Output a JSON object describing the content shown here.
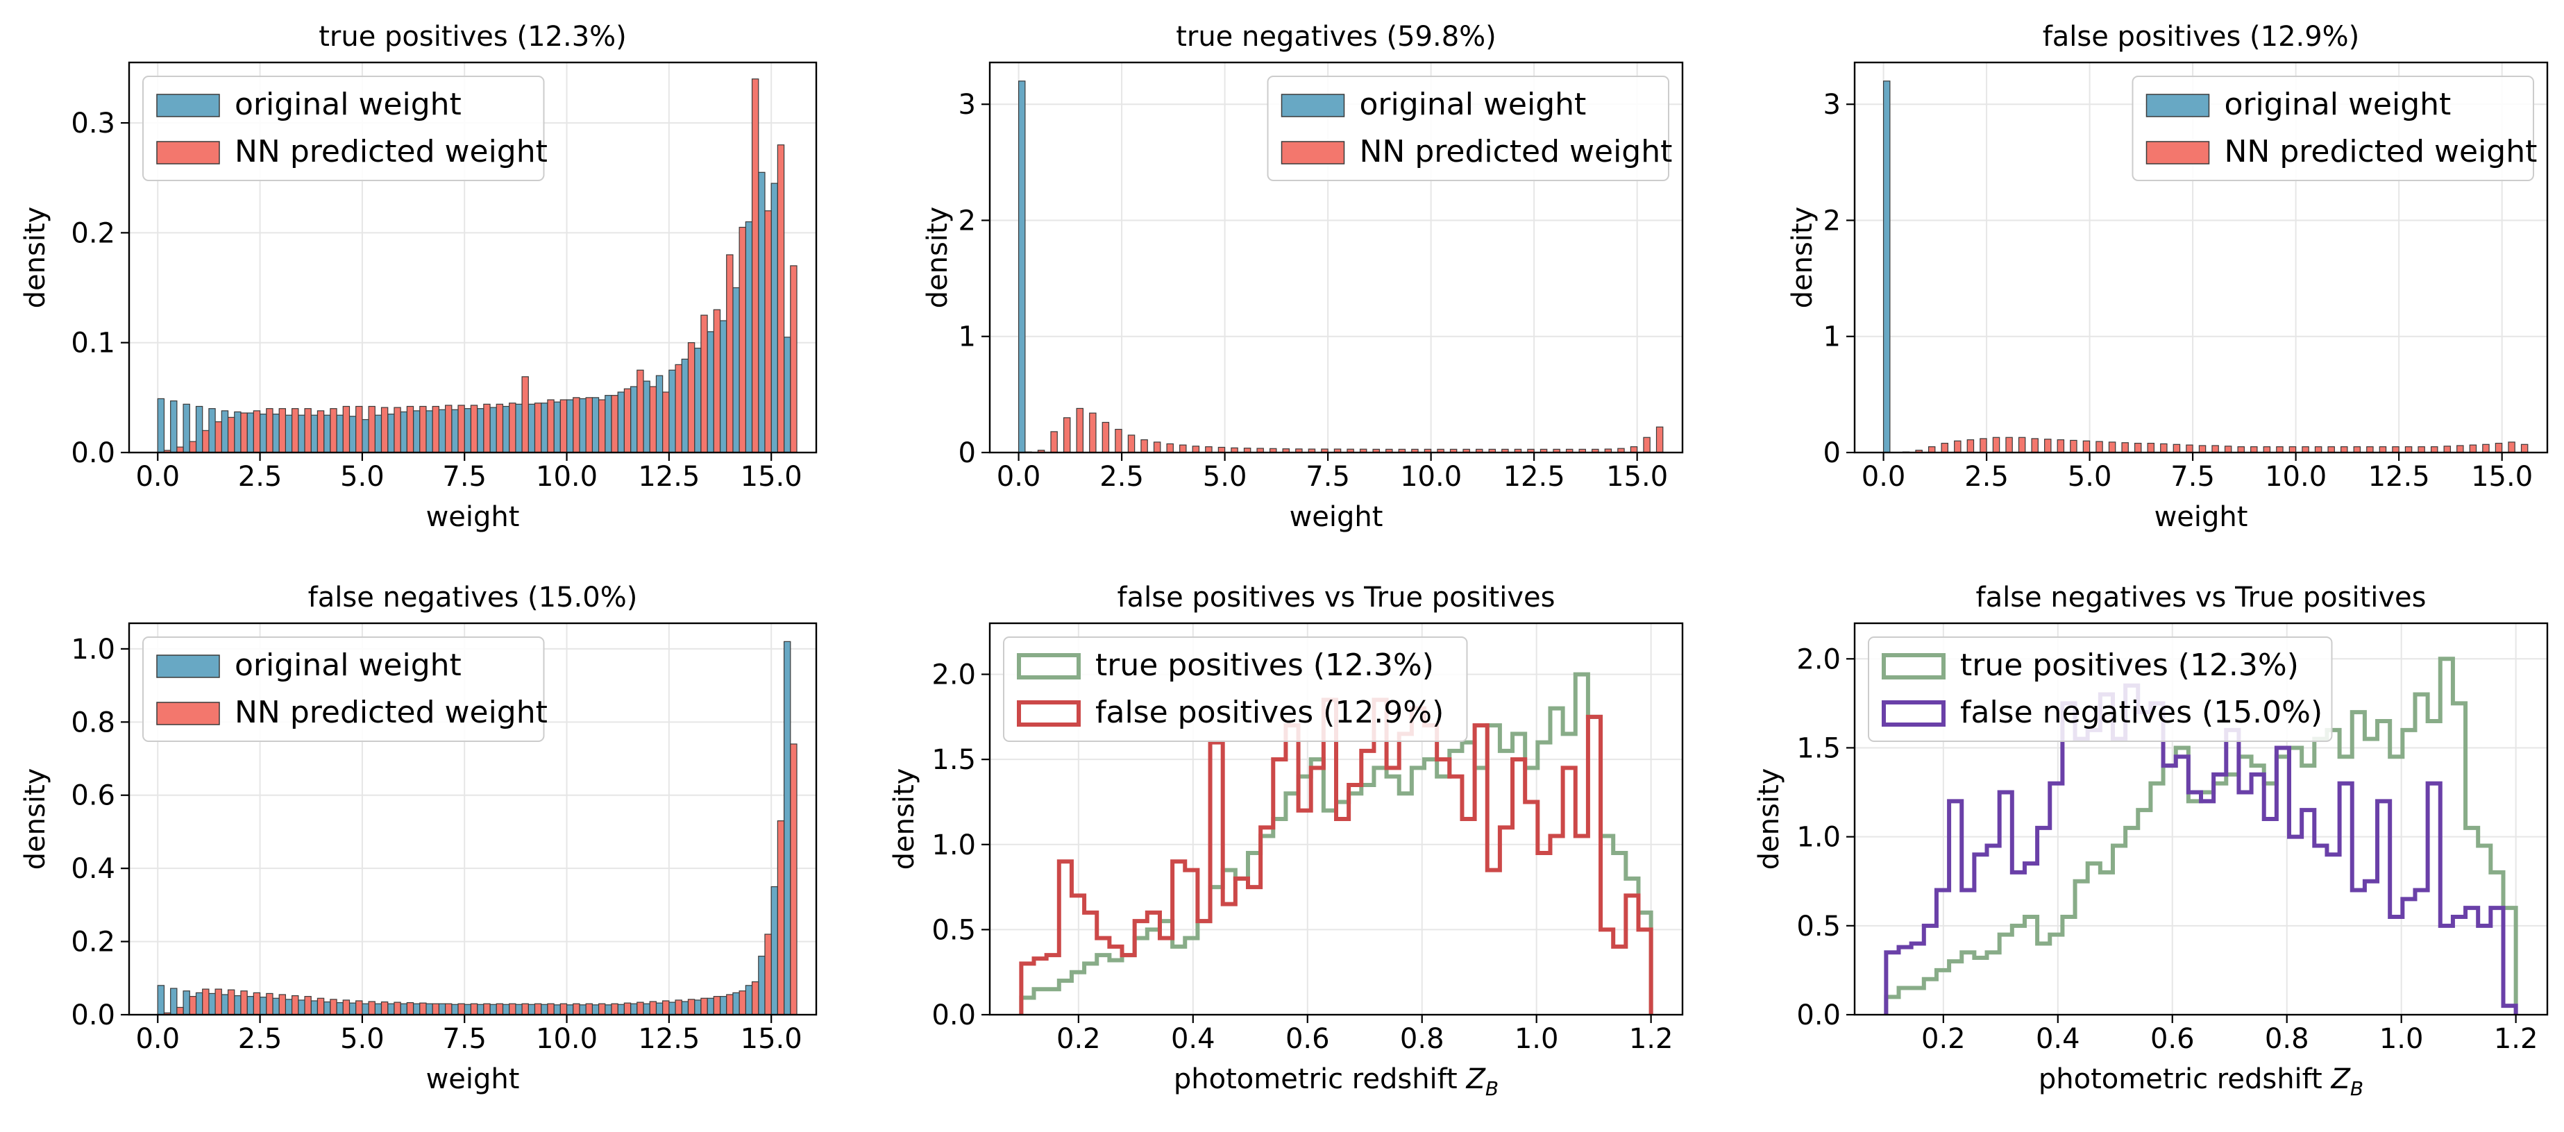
{
  "figure": {
    "background": "#ffffff"
  },
  "colors": {
    "original": "#68a8c4",
    "predicted": "#f3776d",
    "tp_step": "#88ac88",
    "fp_step": "#cc4848",
    "fn_step": "#6a40a8",
    "grid": "#e6e6e6"
  },
  "chart_data": [
    {
      "id": "tp",
      "type": "bar",
      "title": "true positives (12.3%)",
      "xlabel": "weight",
      "ylabel": "density",
      "xlim": [
        -0.7,
        16.1
      ],
      "ylim": [
        0,
        0.355
      ],
      "xticks": [
        0.0,
        2.5,
        5.0,
        7.5,
        10.0,
        12.5,
        15.0
      ],
      "xtick_labels": [
        "0.0",
        "2.5",
        "5.0",
        "7.5",
        "10.0",
        "12.5",
        "15.0"
      ],
      "yticks": [
        0.0,
        0.1,
        0.2,
        0.3
      ],
      "ytick_labels": [
        "0.0",
        "0.1",
        "0.2",
        "0.3"
      ],
      "legend": {
        "placement": "upper-left",
        "items": [
          "original weight",
          "NN predicted weight"
        ]
      },
      "bin_start": 0,
      "bin_width": 0.3125,
      "series": [
        {
          "name": "original weight",
          "values": [
            0.049,
            0.047,
            0.044,
            0.042,
            0.04,
            0.038,
            0.037,
            0.036,
            0.035,
            0.035,
            0.034,
            0.034,
            0.034,
            0.034,
            0.034,
            0.033,
            0.03,
            0.034,
            0.035,
            0.037,
            0.038,
            0.038,
            0.039,
            0.039,
            0.04,
            0.04,
            0.041,
            0.042,
            0.044,
            0.044,
            0.045,
            0.046,
            0.048,
            0.049,
            0.05,
            0.052,
            0.055,
            0.06,
            0.065,
            0.07,
            0.075,
            0.085,
            0.095,
            0.11,
            0.12,
            0.15,
            0.21,
            0.255,
            0.245,
            0.105
          ]
        },
        {
          "name": "NN predicted weight",
          "values": [
            0.002,
            0.005,
            0.01,
            0.02,
            0.028,
            0.032,
            0.036,
            0.038,
            0.04,
            0.04,
            0.04,
            0.04,
            0.038,
            0.04,
            0.042,
            0.042,
            0.042,
            0.041,
            0.041,
            0.042,
            0.042,
            0.042,
            0.043,
            0.043,
            0.043,
            0.044,
            0.044,
            0.045,
            0.069,
            0.045,
            0.048,
            0.048,
            0.05,
            0.05,
            0.048,
            0.052,
            0.058,
            0.075,
            0.06,
            0.055,
            0.08,
            0.1,
            0.125,
            0.13,
            0.18,
            0.205,
            0.34,
            0.22,
            0.28,
            0.17
          ]
        }
      ]
    },
    {
      "id": "tn",
      "type": "bar",
      "title": "true negatives (59.8%)",
      "xlabel": "weight",
      "ylabel": "density",
      "xlim": [
        -0.7,
        16.1
      ],
      "ylim": [
        0,
        3.36
      ],
      "xticks": [
        0.0,
        2.5,
        5.0,
        7.5,
        10.0,
        12.5,
        15.0
      ],
      "xtick_labels": [
        "0.0",
        "2.5",
        "5.0",
        "7.5",
        "10.0",
        "12.5",
        "15.0"
      ],
      "yticks": [
        0,
        1,
        2,
        3
      ],
      "ytick_labels": [
        "0",
        "1",
        "2",
        "3"
      ],
      "legend": {
        "placement": "upper-right",
        "items": [
          "original weight",
          "NN predicted weight"
        ]
      },
      "bin_start": 0,
      "bin_width": 0.3125,
      "series": [
        {
          "name": "original weight",
          "values": [
            3.2,
            0,
            0,
            0,
            0,
            0,
            0,
            0,
            0,
            0,
            0,
            0,
            0,
            0,
            0,
            0,
            0,
            0,
            0,
            0,
            0,
            0,
            0,
            0,
            0,
            0,
            0,
            0,
            0,
            0,
            0,
            0,
            0,
            0,
            0,
            0,
            0,
            0,
            0,
            0,
            0,
            0,
            0,
            0,
            0,
            0,
            0,
            0,
            0,
            0
          ]
        },
        {
          "name": "NN predicted weight",
          "values": [
            0.005,
            0.02,
            0.18,
            0.3,
            0.38,
            0.34,
            0.26,
            0.2,
            0.15,
            0.11,
            0.09,
            0.075,
            0.065,
            0.055,
            0.05,
            0.045,
            0.04,
            0.038,
            0.036,
            0.034,
            0.032,
            0.031,
            0.03,
            0.03,
            0.03,
            0.029,
            0.029,
            0.028,
            0.028,
            0.028,
            0.028,
            0.028,
            0.028,
            0.028,
            0.028,
            0.028,
            0.028,
            0.028,
            0.028,
            0.028,
            0.028,
            0.028,
            0.028,
            0.028,
            0.028,
            0.03,
            0.035,
            0.05,
            0.13,
            0.22
          ]
        }
      ]
    },
    {
      "id": "fp",
      "type": "bar",
      "title": "false positives (12.9%)",
      "xlabel": "weight",
      "ylabel": "density",
      "xlim": [
        -0.7,
        16.1
      ],
      "ylim": [
        0,
        3.36
      ],
      "xticks": [
        0.0,
        2.5,
        5.0,
        7.5,
        10.0,
        12.5,
        15.0
      ],
      "xtick_labels": [
        "0.0",
        "2.5",
        "5.0",
        "7.5",
        "10.0",
        "12.5",
        "15.0"
      ],
      "yticks": [
        0,
        1,
        2,
        3
      ],
      "ytick_labels": [
        "0",
        "1",
        "2",
        "3"
      ],
      "legend": {
        "placement": "upper-right",
        "items": [
          "original weight",
          "NN predicted weight"
        ]
      },
      "bin_start": 0,
      "bin_width": 0.3125,
      "series": [
        {
          "name": "original weight",
          "values": [
            3.2,
            0,
            0,
            0,
            0,
            0,
            0,
            0,
            0,
            0,
            0,
            0,
            0,
            0,
            0,
            0,
            0,
            0,
            0,
            0,
            0,
            0,
            0,
            0,
            0,
            0,
            0,
            0,
            0,
            0,
            0,
            0,
            0,
            0,
            0,
            0,
            0,
            0,
            0,
            0,
            0,
            0,
            0,
            0,
            0,
            0,
            0,
            0,
            0,
            0
          ]
        },
        {
          "name": "NN predicted weight",
          "values": [
            0.002,
            0.005,
            0.02,
            0.05,
            0.08,
            0.1,
            0.11,
            0.12,
            0.13,
            0.13,
            0.13,
            0.12,
            0.115,
            0.11,
            0.105,
            0.1,
            0.095,
            0.09,
            0.085,
            0.08,
            0.08,
            0.075,
            0.07,
            0.065,
            0.06,
            0.06,
            0.055,
            0.05,
            0.05,
            0.05,
            0.05,
            0.05,
            0.05,
            0.05,
            0.05,
            0.05,
            0.05,
            0.05,
            0.05,
            0.05,
            0.05,
            0.05,
            0.05,
            0.055,
            0.06,
            0.065,
            0.07,
            0.08,
            0.09,
            0.07
          ]
        }
      ]
    },
    {
      "id": "fn",
      "type": "bar",
      "title": "false negatives (15.0%)",
      "xlabel": "weight",
      "ylabel": "density",
      "xlim": [
        -0.7,
        16.1
      ],
      "ylim": [
        0,
        1.07
      ],
      "xticks": [
        0.0,
        2.5,
        5.0,
        7.5,
        10.0,
        12.5,
        15.0
      ],
      "xtick_labels": [
        "0.0",
        "2.5",
        "5.0",
        "7.5",
        "10.0",
        "12.5",
        "15.0"
      ],
      "yticks": [
        0.0,
        0.2,
        0.4,
        0.6,
        0.8,
        1.0
      ],
      "ytick_labels": [
        "0.0",
        "0.2",
        "0.4",
        "0.6",
        "0.8",
        "1.0"
      ],
      "legend": {
        "placement": "upper-left",
        "items": [
          "original weight",
          "NN predicted weight"
        ]
      },
      "bin_start": 0,
      "bin_width": 0.3125,
      "series": [
        {
          "name": "original weight",
          "values": [
            0.08,
            0.072,
            0.065,
            0.06,
            0.058,
            0.055,
            0.052,
            0.05,
            0.048,
            0.045,
            0.042,
            0.04,
            0.038,
            0.035,
            0.033,
            0.032,
            0.03,
            0.03,
            0.03,
            0.03,
            0.03,
            0.03,
            0.03,
            0.028,
            0.028,
            0.028,
            0.028,
            0.028,
            0.028,
            0.028,
            0.028,
            0.027,
            0.027,
            0.027,
            0.027,
            0.027,
            0.028,
            0.03,
            0.03,
            0.032,
            0.034,
            0.036,
            0.04,
            0.045,
            0.05,
            0.06,
            0.08,
            0.16,
            0.35,
            1.02
          ]
        },
        {
          "name": "NN predicted weight",
          "values": [
            0.005,
            0.02,
            0.05,
            0.07,
            0.07,
            0.068,
            0.065,
            0.06,
            0.058,
            0.055,
            0.052,
            0.05,
            0.045,
            0.042,
            0.04,
            0.038,
            0.036,
            0.035,
            0.034,
            0.033,
            0.032,
            0.03,
            0.03,
            0.03,
            0.03,
            0.03,
            0.03,
            0.03,
            0.03,
            0.03,
            0.03,
            0.03,
            0.03,
            0.03,
            0.03,
            0.03,
            0.032,
            0.034,
            0.036,
            0.038,
            0.04,
            0.042,
            0.045,
            0.05,
            0.055,
            0.065,
            0.09,
            0.22,
            0.53,
            0.74
          ]
        }
      ]
    },
    {
      "id": "fp_vs_tp",
      "type": "step",
      "title": "false positives vs True positives",
      "xlabel": "photometric redshift Z_B",
      "ylabel": "density",
      "xlim": [
        0.045,
        1.255
      ],
      "ylim": [
        0,
        2.3
      ],
      "xticks": [
        0.2,
        0.4,
        0.6,
        0.8,
        1.0,
        1.2
      ],
      "xtick_labels": [
        "0.2",
        "0.4",
        "0.6",
        "0.8",
        "1.0",
        "1.2"
      ],
      "yticks": [
        0.0,
        0.5,
        1.0,
        1.5,
        2.0
      ],
      "ytick_labels": [
        "0.0",
        "0.5",
        "1.0",
        "1.5",
        "2.0"
      ],
      "legend": {
        "placement": "upper-left",
        "items": [
          "true positives (12.3%)",
          "false positives (12.9%)"
        ]
      },
      "bin_start": 0.1,
      "bin_width": 0.022,
      "series": [
        {
          "name": "true positives (12.3%)",
          "color_key": "tp_step",
          "values": [
            0.1,
            0.15,
            0.15,
            0.2,
            0.25,
            0.3,
            0.35,
            0.32,
            0.35,
            0.45,
            0.5,
            0.55,
            0.4,
            0.45,
            0.55,
            0.75,
            0.85,
            0.8,
            0.95,
            1.05,
            1.15,
            1.3,
            1.4,
            1.5,
            1.2,
            1.25,
            1.3,
            1.35,
            1.45,
            1.4,
            1.3,
            1.45,
            1.5,
            1.4,
            1.55,
            1.6,
            1.45,
            1.7,
            1.55,
            1.65,
            1.45,
            1.6,
            1.8,
            1.65,
            2.0,
            1.75,
            1.05,
            0.95,
            0.8,
            0.6
          ]
        },
        {
          "name": "false positives (12.9%)",
          "color_key": "fp_step",
          "values": [
            0.3,
            0.33,
            0.35,
            0.9,
            0.7,
            0.6,
            0.45,
            0.4,
            0.35,
            0.55,
            0.6,
            0.45,
            0.9,
            0.85,
            0.55,
            1.6,
            0.65,
            0.8,
            0.75,
            1.1,
            1.5,
            1.7,
            1.2,
            1.45,
            1.85,
            1.15,
            1.35,
            1.55,
            1.85,
            1.45,
            1.65,
            1.8,
            1.7,
            1.5,
            1.4,
            1.15,
            1.7,
            0.85,
            1.1,
            1.5,
            1.25,
            0.95,
            1.05,
            1.45,
            1.05,
            1.75,
            0.5,
            0.4,
            0.7,
            0.5
          ]
        }
      ]
    },
    {
      "id": "fn_vs_tp",
      "type": "step",
      "title": "false negatives vs True positives",
      "xlabel": "photometric redshift Z_B",
      "ylabel": "density",
      "xlim": [
        0.045,
        1.255
      ],
      "ylim": [
        0,
        2.2
      ],
      "xticks": [
        0.2,
        0.4,
        0.6,
        0.8,
        1.0,
        1.2
      ],
      "xtick_labels": [
        "0.2",
        "0.4",
        "0.6",
        "0.8",
        "1.0",
        "1.2"
      ],
      "yticks": [
        0.0,
        0.5,
        1.0,
        1.5,
        2.0
      ],
      "ytick_labels": [
        "0.0",
        "0.5",
        "1.0",
        "1.5",
        "2.0"
      ],
      "legend": {
        "placement": "upper-left",
        "items": [
          "true positives (12.3%)",
          "false negatives (15.0%)"
        ]
      },
      "bin_start": 0.1,
      "bin_width": 0.022,
      "series": [
        {
          "name": "true positives (12.3%)",
          "color_key": "tp_step",
          "values": [
            0.1,
            0.15,
            0.15,
            0.2,
            0.25,
            0.3,
            0.35,
            0.32,
            0.35,
            0.45,
            0.5,
            0.55,
            0.4,
            0.45,
            0.55,
            0.75,
            0.85,
            0.8,
            0.95,
            1.05,
            1.15,
            1.3,
            1.4,
            1.5,
            1.2,
            1.25,
            1.3,
            1.35,
            1.45,
            1.4,
            1.3,
            1.45,
            1.5,
            1.4,
            1.55,
            1.6,
            1.45,
            1.7,
            1.55,
            1.65,
            1.45,
            1.6,
            1.8,
            1.65,
            2.0,
            1.75,
            1.05,
            0.95,
            0.8,
            0.6
          ]
        },
        {
          "name": "false negatives (15.0%)",
          "color_key": "fn_step",
          "values": [
            0.35,
            0.38,
            0.4,
            0.5,
            0.7,
            1.2,
            0.7,
            0.9,
            0.95,
            1.25,
            0.8,
            0.85,
            1.05,
            1.3,
            1.75,
            1.55,
            1.6,
            1.8,
            1.55,
            1.85,
            1.7,
            1.75,
            1.4,
            1.45,
            1.25,
            1.2,
            1.35,
            1.6,
            1.25,
            1.35,
            1.1,
            1.5,
            1.0,
            1.15,
            0.95,
            0.9,
            1.3,
            0.7,
            0.75,
            1.2,
            0.55,
            0.65,
            0.7,
            1.3,
            0.5,
            0.55,
            0.6,
            0.5,
            0.6,
            0.05
          ]
        }
      ]
    }
  ]
}
